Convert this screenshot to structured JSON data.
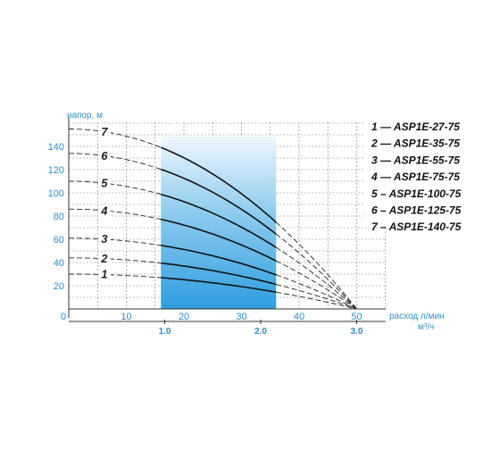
{
  "chart_data": {
    "type": "line",
    "ylabel": "напор, м",
    "xlabel_primary": "расход л/мин",
    "xlabel_secondary": "м³/ч",
    "x_ticks": [
      0,
      10,
      20,
      30,
      40,
      50
    ],
    "x2_ticks": [
      "1.0",
      "2.0",
      "3.0"
    ],
    "x2_values_lpm": [
      16.67,
      33.33,
      50
    ],
    "y_ticks": [
      20,
      40,
      60,
      80,
      100,
      120,
      140
    ],
    "xlim": [
      0,
      55
    ],
    "ylim": [
      0,
      160
    ],
    "grid": true,
    "working_range": [
      16,
      36
    ],
    "series": [
      {
        "label": "1",
        "legend": "1 — ASP1E-27-75",
        "h0": 30,
        "hmax": 50
      },
      {
        "label": "2",
        "legend": "2 — ASP1E-35-75",
        "h0": 44,
        "hmax": 50
      },
      {
        "label": "3",
        "legend": "3 — ASP1E-55-75",
        "h0": 61,
        "hmax": 50
      },
      {
        "label": "4",
        "legend": "4 — ASP1E-75-75",
        "h0": 86,
        "hmax": 50
      },
      {
        "label": "5",
        "legend": "5 – ASP1E-100-75",
        "h0": 110,
        "hmax": 50
      },
      {
        "label": "6",
        "legend": "6 – ASP1E-125-75",
        "h0": 134,
        "hmax": 50
      },
      {
        "label": "7",
        "legend": "7 – ASP1E-140-75",
        "h0": 155,
        "hmax": 50
      }
    ]
  }
}
